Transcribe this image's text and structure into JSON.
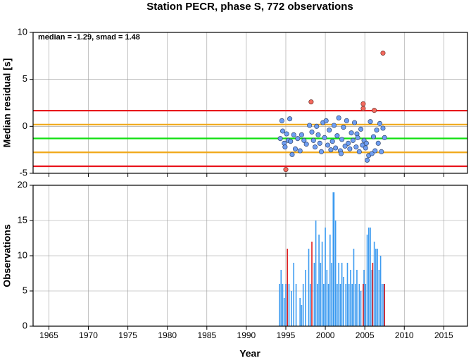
{
  "chart_data": [
    {
      "type": "scatter",
      "title": "Station PECR, phase S, 772 observations",
      "ylabel": "Median residual [s]",
      "annotation": "median = -1.29, smad = 1.48",
      "xlim": [
        1963,
        2018
      ],
      "xticks": [
        1965,
        1970,
        1975,
        1980,
        1985,
        1990,
        1995,
        2000,
        2005,
        2010,
        2015
      ],
      "ylim": [
        -5,
        10
      ],
      "yticks": [
        -5,
        0,
        5,
        10
      ],
      "grid": true,
      "hlines": [
        {
          "value": 1.67,
          "color": "#e8141c"
        },
        {
          "value": 0.19,
          "color": "#f0a818"
        },
        {
          "value": -1.29,
          "color": "#10e010"
        },
        {
          "value": -2.77,
          "color": "#f0a818"
        },
        {
          "value": -4.25,
          "color": "#e8141c"
        }
      ],
      "series": [
        {
          "color": "#6f9ef2",
          "x": [
            1994.3,
            1994.5,
            1994.6,
            1994.8,
            1994.9,
            1995.1,
            1995.3,
            1995.5,
            1995.6,
            1995.8,
            1996.0,
            1996.2,
            1996.5,
            1996.8,
            1997.0,
            1997.3,
            1997.6,
            1998.0,
            1998.3,
            1998.5,
            1998.7,
            1998.9,
            1999.1,
            1999.3,
            1999.5,
            1999.7,
            1999.9,
            2000.1,
            2000.3,
            2000.5,
            2000.7,
            2000.9,
            2001.1,
            2001.3,
            2001.5,
            2001.7,
            2001.9,
            2002.0,
            2002.1,
            2002.3,
            2002.5,
            2002.7,
            2002.9,
            2003.1,
            2003.3,
            2003.5,
            2003.7,
            2003.9,
            2004.0,
            2004.1,
            2004.3,
            2004.5,
            2004.7,
            2004.9,
            2005.1,
            2005.2,
            2005.3,
            2005.5,
            2005.7,
            2005.9,
            2006.1,
            2006.3,
            2006.5,
            2006.7,
            2006.9,
            2007.1,
            2007.3,
            2007.5
          ],
          "values": [
            -1.3,
            0.6,
            -0.5,
            -1.8,
            -2.2,
            -0.8,
            -1.5,
            0.8,
            -1.6,
            -3.0,
            -0.9,
            -2.4,
            -1.3,
            -2.6,
            -0.9,
            -1.5,
            -1.9,
            0.1,
            -0.6,
            -1.5,
            -2.2,
            0.0,
            -0.9,
            -1.8,
            -2.7,
            0.4,
            -1.2,
            0.6,
            -2.0,
            -0.4,
            -2.5,
            -1.6,
            0.1,
            -2.3,
            -1.0,
            0.9,
            -2.6,
            -2.9,
            -1.4,
            -0.1,
            -2.1,
            0.6,
            -1.8,
            -2.4,
            -0.7,
            -1.5,
            0.4,
            -2.2,
            -0.8,
            -1.2,
            -2.7,
            -0.3,
            -2.0,
            -1.5,
            -2.3,
            -1.8,
            -3.6,
            -3.1,
            0.5,
            -2.9,
            -1.1,
            -2.6,
            -0.4,
            -1.8,
            0.3,
            -2.7,
            -0.2,
            -1.2
          ]
        },
        {
          "color": "#f46a5e",
          "x": [
            1995.0,
            1998.2,
            2004.8,
            2004.8,
            2006.2,
            2007.3
          ],
          "values": [
            -4.6,
            2.6,
            2.4,
            1.9,
            1.7,
            7.8
          ]
        }
      ]
    },
    {
      "type": "bar",
      "ylabel": "Observations",
      "xlabel": "Year",
      "xlim": [
        1963,
        2018
      ],
      "xticks": [
        1965,
        1970,
        1975,
        1980,
        1985,
        1990,
        1995,
        2000,
        2005,
        2010,
        2015
      ],
      "ylim": [
        0,
        20
      ],
      "yticks": [
        0,
        5,
        10,
        15,
        20
      ],
      "grid": true,
      "series": [
        {
          "color": "#3d9bf0",
          "x": [
            1994.2,
            1994.4,
            1994.6,
            1994.8,
            1995.0,
            1995.4,
            1995.7,
            1996.0,
            1996.3,
            1996.8,
            1997.0,
            1997.2,
            1997.5,
            1997.9,
            1998.1,
            1998.6,
            1998.8,
            1999.0,
            1999.2,
            1999.4,
            1999.6,
            1999.8,
            2000.0,
            2000.2,
            2000.4,
            2000.6,
            2000.8,
            2001.0,
            2001.1,
            2001.3,
            2001.5,
            2001.7,
            2001.9,
            2002.1,
            2002.3,
            2002.6,
            2002.8,
            2003.0,
            2003.2,
            2003.4,
            2003.6,
            2003.8,
            2004.0,
            2004.3,
            2004.5,
            2004.9,
            2005.1,
            2005.3,
            2005.5,
            2005.7,
            2005.9,
            2006.2,
            2006.4,
            2006.6,
            2006.8,
            2007.0,
            2007.2,
            2007.4
          ],
          "values": [
            6,
            8,
            6,
            4,
            6,
            6,
            5,
            9,
            6,
            4,
            3,
            6,
            8,
            11,
            6,
            9,
            15,
            6,
            13,
            9,
            12,
            6,
            14,
            8,
            6,
            13,
            9,
            19,
            19,
            15,
            6,
            9,
            6,
            9,
            7,
            6,
            9,
            6,
            8,
            6,
            11,
            6,
            8,
            6,
            5,
            8,
            6,
            13,
            14,
            14,
            8,
            12,
            11,
            11,
            8,
            10,
            6,
            6
          ]
        },
        {
          "color": "#e02020",
          "x": [
            1995.2,
            1998.3,
            2004.8,
            2006.0,
            2007.5
          ],
          "values": [
            11,
            12,
            6,
            9,
            6
          ]
        }
      ]
    }
  ]
}
